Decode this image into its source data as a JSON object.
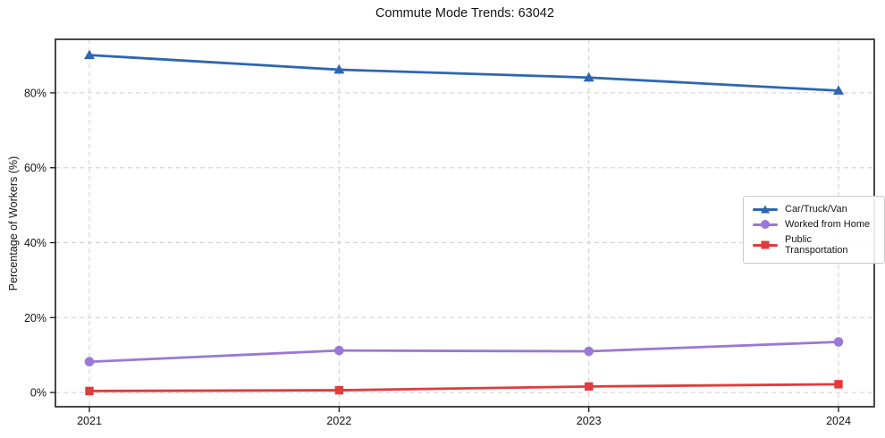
{
  "chart": {
    "title": "Commute Mode Trends: 63042",
    "ylabel": "Percentage of Workers (%)"
  },
  "chart_data": {
    "type": "line",
    "title": "Commute Mode Trends: 63042",
    "xlabel": "",
    "ylabel": "Percentage of Workers (%)",
    "x": [
      2021,
      2022,
      2023,
      2024
    ],
    "x_tick_labels": [
      "2021",
      "2022",
      "2023",
      "2024"
    ],
    "yticks": [
      0,
      20,
      40,
      60,
      80
    ],
    "ytick_labels": [
      "0%",
      "20%",
      "40%",
      "60%",
      "80%"
    ],
    "ylim": [
      -3.8,
      94.3
    ],
    "grid": true,
    "grid_style": "dashed",
    "legend_position": "center-right",
    "series": [
      {
        "name": "Car/Truck/Van",
        "marker": "triangle",
        "color": "#2d66b2",
        "values": [
          90.1,
          86.2,
          84.1,
          80.6
        ]
      },
      {
        "name": "Worked from Home",
        "marker": "circle",
        "color": "#9a78d6",
        "values": [
          8.2,
          11.2,
          11.0,
          13.5
        ]
      },
      {
        "name": "Public Transportation",
        "marker": "square",
        "color": "#e23b3c",
        "values": [
          0.4,
          0.6,
          1.6,
          2.2
        ]
      }
    ]
  },
  "colors": {
    "grid": "#cfcfcf",
    "frame": "#1a1a1a",
    "text": "#141414",
    "background": "#ffffff"
  }
}
